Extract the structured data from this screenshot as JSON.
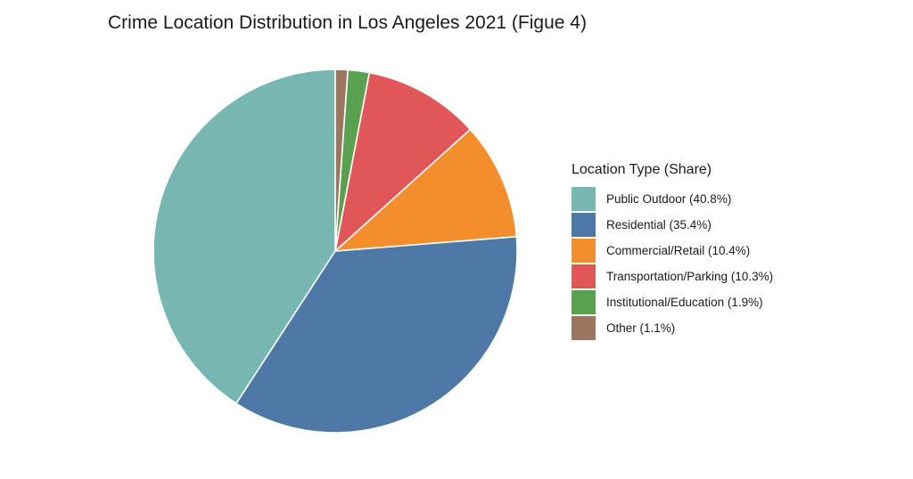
{
  "chart_data": {
    "type": "pie",
    "title": "Crime Location Distribution in Los Angeles 2021 (Figue 4)",
    "legend_title": "Location Type (Share)",
    "legend_position": "right",
    "start_angle": "12 o'clock",
    "direction": "counterclockwise",
    "slices": [
      {
        "label": "Public Outdoor (40.8%)",
        "name": "Public Outdoor",
        "value": 40.8,
        "color": "#76b7b2"
      },
      {
        "label": "Residential (35.4%)",
        "name": "Residential",
        "value": 35.4,
        "color": "#4e79a7"
      },
      {
        "label": "Commercial/Retail (10.4%)",
        "name": "Commercial/Retail",
        "value": 10.4,
        "color": "#f28e2b"
      },
      {
        "label": "Transportation/Parking (10.3%)",
        "name": "Transportation/Parking",
        "value": 10.3,
        "color": "#e15759"
      },
      {
        "label": "Institutional/Education (1.9%)",
        "name": "Institutional/Education",
        "value": 1.9,
        "color": "#59a14f"
      },
      {
        "label": "Other (1.1%)",
        "name": "Other",
        "value": 1.1,
        "color": "#9c755f"
      }
    ]
  }
}
